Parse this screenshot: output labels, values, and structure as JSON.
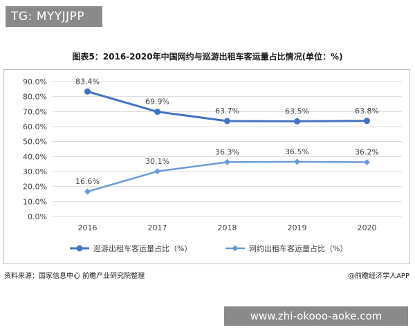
{
  "tag_text": "TG: MYYJJPP",
  "url_text": "www.zhi-okooo-aoke.com",
  "source_text": "资料来源：国家信息中心 前瞻产业研究院整理",
  "credit_text": "@前瞻经济学人APP",
  "colors": {
    "series1": "#4472c4",
    "series2": "#6a9ad8",
    "grid": "#d9d9d9",
    "text": "#404040"
  },
  "chart_data": {
    "type": "line",
    "title": "图表5：2016-2020年中国网约与巡游出租车客运量占比情况(单位：%)",
    "categories": [
      "2016",
      "2017",
      "2018",
      "2019",
      "2020"
    ],
    "ylim": [
      0,
      90
    ],
    "yticks": [
      "0.0%",
      "10.0%",
      "20.0%",
      "30.0%",
      "40.0%",
      "50.0%",
      "60.0%",
      "70.0%",
      "80.0%",
      "90.0%"
    ],
    "grid": true,
    "legend_position": "bottom",
    "series": [
      {
        "name": "巡游出租车客运量占比（%）",
        "values": [
          83.4,
          69.9,
          63.7,
          63.5,
          63.8
        ],
        "labels": [
          "83.4%",
          "69.9%",
          "63.7%",
          "63.5%",
          "63.8%"
        ],
        "marker": "circle"
      },
      {
        "name": "网约出租车客运量占比（%）",
        "values": [
          16.6,
          30.1,
          36.3,
          36.5,
          36.2
        ],
        "labels": [
          "16.6%",
          "30.1%",
          "36.3%",
          "36.5%",
          "36.2%"
        ],
        "marker": "diamond"
      }
    ]
  }
}
